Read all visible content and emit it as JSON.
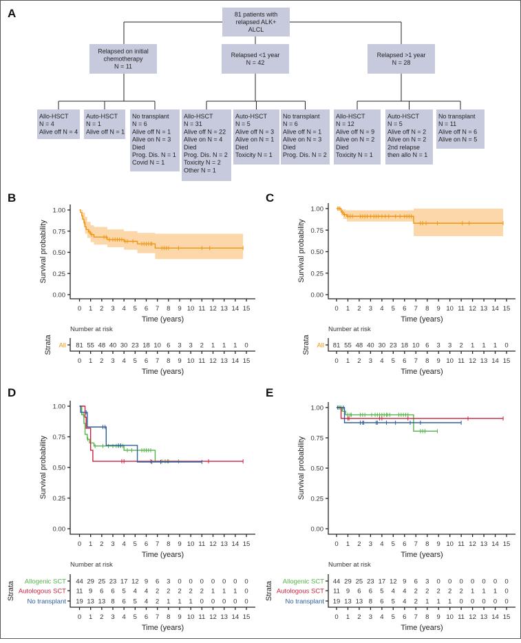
{
  "panels": {
    "A": "A",
    "B": "B",
    "C": "C",
    "D": "D",
    "E": "E"
  },
  "flowchart": {
    "root": [
      "81 patients with",
      "relapsed ALK+",
      "ALCL"
    ],
    "groups": [
      {
        "label": [
          "Relapsed on initial",
          "chemotherapy",
          "N = 11"
        ],
        "children": [
          [
            "Allo-HSCT",
            "N = 4",
            "Alive off N = 4"
          ],
          [
            "Auto-HSCT",
            "N = 1",
            "Alive off N = 1"
          ],
          [
            "No transplant",
            "N = 6",
            "Alive off N = 1",
            "Alive on N = 3",
            "Died",
            "Prog. Dis. N = 1",
            "Covid N = 1"
          ]
        ]
      },
      {
        "label": [
          "Relapsed <1 year",
          "N = 42"
        ],
        "children": [
          [
            "Allo-HSCT",
            "N = 31",
            "Alive off N = 22",
            "Alive on N = 4",
            "Died",
            "Prog. Dis. N = 2",
            "Toxicity N = 2",
            "Other N = 1"
          ],
          [
            "Auto-HSCT",
            "N = 5",
            "Alive off N = 3",
            "Alive on N = 1",
            "Died",
            "Toxicity N = 1"
          ],
          [
            "No transplant",
            "N = 6",
            "Alive off N = 1",
            "Alive on N = 3",
            "Died",
            "Prog. Dis. N = 2"
          ]
        ]
      },
      {
        "label": [
          "Relapsed >1 year",
          "N = 28"
        ],
        "children": [
          [
            "Allo-HSCT",
            "N = 12",
            "Alive off N = 9",
            "Alive on N = 2",
            "Died",
            "Toxicity N = 1"
          ],
          [
            "Auto-HSCT",
            "N = 5",
            "Alive off N = 2",
            "Alive on N = 2",
            "2nd relapse",
            "then allo N = 1"
          ],
          [
            "No transplant",
            "N = 11",
            "Alive off N = 6",
            "Alive on N = 5"
          ]
        ]
      }
    ]
  },
  "colors": {
    "all": "#f0950f",
    "band": "#fbd7aa",
    "allo": "#52b447",
    "auto": "#cf1f3d",
    "none": "#2c5d9c"
  },
  "chart_data": [
    {
      "panel": "B",
      "type": "line",
      "xlabel": "Time (years)",
      "ylabel": "Survival probability",
      "xticks": [
        "0",
        "1",
        "2",
        "3",
        "4",
        "5",
        "6",
        "7",
        "8",
        "9",
        "10",
        "11",
        "12",
        "13",
        "14",
        "15"
      ],
      "yticks": [
        "0.00",
        "0.25",
        "0.50",
        "0.75",
        "1.00"
      ],
      "xlim": [
        0,
        15
      ],
      "ylim": [
        0,
        1
      ],
      "risk_title": "Number at risk",
      "strata_label": "Strata",
      "series": [
        {
          "name": "All",
          "color_key": "all",
          "steps": [
            [
              0,
              1
            ],
            [
              0.1,
              0.97
            ],
            [
              0.2,
              0.93
            ],
            [
              0.3,
              0.89
            ],
            [
              0.4,
              0.85
            ],
            [
              0.5,
              0.8
            ],
            [
              0.6,
              0.77
            ],
            [
              0.8,
              0.74
            ],
            [
              1.0,
              0.71
            ],
            [
              1.3,
              0.68
            ],
            [
              2.5,
              0.65
            ],
            [
              4.0,
              0.63
            ],
            [
              5.2,
              0.6
            ],
            [
              6.8,
              0.55
            ]
          ],
          "end": 14.7,
          "upper": [
            [
              0,
              1
            ],
            [
              0.3,
              0.97
            ],
            [
              0.5,
              0.92
            ],
            [
              0.7,
              0.86
            ],
            [
              1.0,
              0.82
            ],
            [
              1.3,
              0.8
            ],
            [
              2.5,
              0.77
            ],
            [
              4.0,
              0.75
            ],
            [
              5.2,
              0.73
            ],
            [
              6.8,
              0.72
            ]
          ],
          "lower": [
            [
              0,
              1
            ],
            [
              0.2,
              0.88
            ],
            [
              0.4,
              0.8
            ],
            [
              0.5,
              0.72
            ],
            [
              0.7,
              0.67
            ],
            [
              1.0,
              0.62
            ],
            [
              1.3,
              0.59
            ],
            [
              2.5,
              0.56
            ],
            [
              4.0,
              0.53
            ],
            [
              5.2,
              0.49
            ],
            [
              6.8,
              0.42
            ]
          ],
          "censor": [
            0.45,
            0.9,
            1.1,
            2.2,
            2.4,
            2.7,
            3.0,
            3.2,
            3.4,
            3.6,
            3.8,
            4.1,
            4.3,
            4.8,
            5.6,
            5.8,
            6.0,
            6.2,
            6.4,
            6.5,
            7.4,
            7.6,
            7.8,
            8.0,
            8.9,
            11.0,
            11.7,
            14.7
          ],
          "risk": [
            "81",
            "55",
            "48",
            "40",
            "30",
            "23",
            "18",
            "10",
            "6",
            "3",
            "3",
            "2",
            "1",
            "1",
            "1",
            "0"
          ]
        }
      ]
    },
    {
      "panel": "C",
      "type": "line",
      "xlabel": "Time (years)",
      "ylabel": "Survival probability",
      "xticks": [
        "0",
        "1",
        "2",
        "3",
        "4",
        "5",
        "6",
        "7",
        "8",
        "9",
        "10",
        "11",
        "12",
        "13",
        "14",
        "15"
      ],
      "yticks": [
        "0.00",
        "0.25",
        "0.50",
        "0.75",
        "1.00"
      ],
      "xlim": [
        0,
        15
      ],
      "ylim": [
        0,
        1
      ],
      "risk_title": "Number at risk",
      "strata_label": "Strata",
      "series": [
        {
          "name": "All",
          "color_key": "all",
          "steps": [
            [
              0,
              1
            ],
            [
              0.4,
              0.96
            ],
            [
              0.6,
              0.93
            ],
            [
              0.9,
              0.91
            ],
            [
              6.8,
              0.83
            ]
          ],
          "end": 14.7,
          "upper": [
            [
              0,
              1
            ],
            [
              0.5,
              0.99
            ],
            [
              0.8,
              0.98
            ],
            [
              6.8,
              1.0
            ]
          ],
          "lower": [
            [
              0,
              1
            ],
            [
              0.4,
              0.92
            ],
            [
              0.6,
              0.88
            ],
            [
              0.9,
              0.85
            ],
            [
              6.8,
              0.68
            ]
          ],
          "censor": [
            0.1,
            0.2,
            0.3,
            0.5,
            0.7,
            1.0,
            1.2,
            1.4,
            2.1,
            2.3,
            2.5,
            2.7,
            3.0,
            3.3,
            3.5,
            3.7,
            4.0,
            4.3,
            4.6,
            5.2,
            5.6,
            6.0,
            6.2,
            6.4,
            6.6,
            7.4,
            7.6,
            7.9,
            8.9,
            11.1,
            11.7,
            14.7
          ],
          "risk": [
            "81",
            "55",
            "48",
            "40",
            "30",
            "23",
            "18",
            "10",
            "6",
            "3",
            "3",
            "2",
            "1",
            "1",
            "1",
            "0"
          ]
        }
      ]
    },
    {
      "panel": "D",
      "type": "line",
      "xlabel": "Time (years)",
      "ylabel": "Survival probability",
      "xticks": [
        "0",
        "1",
        "2",
        "3",
        "4",
        "5",
        "6",
        "7",
        "8",
        "9",
        "10",
        "11",
        "12",
        "13",
        "14",
        "15"
      ],
      "yticks": [
        "0.00",
        "0.25",
        "0.50",
        "0.75",
        "1.00"
      ],
      "xlim": [
        0,
        15
      ],
      "ylim": [
        0,
        1
      ],
      "risk_title": "Number at risk",
      "strata_label": "Strata",
      "series": [
        {
          "name": "Allogenic SCT",
          "color_key": "allo",
          "steps": [
            [
              0,
              1
            ],
            [
              0.2,
              0.93
            ],
            [
              0.4,
              0.86
            ],
            [
              0.5,
              0.77
            ],
            [
              0.7,
              0.73
            ],
            [
              0.9,
              0.7
            ],
            [
              1.3,
              0.675
            ],
            [
              4.0,
              0.64
            ],
            [
              6.8,
              0.55
            ]
          ],
          "end": 8.9,
          "censor": [
            0.35,
            0.75,
            1.4,
            2.1,
            2.6,
            3.0,
            3.3,
            3.5,
            3.7,
            3.9,
            4.3,
            4.7,
            5.6,
            5.8,
            6.0,
            6.2,
            6.4,
            7.4,
            7.7,
            7.9,
            8.0,
            8.9
          ],
          "risk": [
            "44",
            "29",
            "25",
            "23",
            "17",
            "12",
            "9",
            "6",
            "3",
            "0",
            "0",
            "0",
            "0",
            "0",
            "0",
            "0"
          ]
        },
        {
          "name": "Autologous SCT",
          "color_key": "auto",
          "steps": [
            [
              0,
              1
            ],
            [
              0.5,
              0.91
            ],
            [
              0.6,
              0.82
            ],
            [
              1.0,
              0.64
            ],
            [
              1.2,
              0.55
            ]
          ],
          "end": 14.7,
          "censor": [
            3.8,
            4.0,
            6.4,
            11.6,
            14.7
          ],
          "risk": [
            "11",
            "9",
            "6",
            "6",
            "5",
            "4",
            "4",
            "2",
            "2",
            "2",
            "2",
            "2",
            "1",
            "1",
            "1",
            "0"
          ]
        },
        {
          "name": "No transplant",
          "color_key": "none",
          "steps": [
            [
              0,
              1
            ],
            [
              0.1,
              0.95
            ],
            [
              0.7,
              0.83
            ],
            [
              2.4,
              0.68
            ],
            [
              5.2,
              0.545
            ]
          ],
          "end": 11.0,
          "censor": [
            0.6,
            2.1,
            2.3,
            3.5,
            3.7,
            6.5,
            7.3,
            11.0
          ],
          "risk": [
            "19",
            "13",
            "13",
            "8",
            "6",
            "5",
            "4",
            "2",
            "1",
            "1",
            "1",
            "0",
            "0",
            "0",
            "0",
            "0"
          ]
        }
      ]
    },
    {
      "panel": "E",
      "type": "line",
      "xlabel": "Time (years)",
      "ylabel": "Survival probability",
      "xticks": [
        "0",
        "1",
        "2",
        "3",
        "4",
        "5",
        "6",
        "7",
        "8",
        "9",
        "10",
        "11",
        "12",
        "13",
        "14",
        "15"
      ],
      "yticks": [
        "0.00",
        "0.25",
        "0.50",
        "0.75",
        "1.00"
      ],
      "xlim": [
        0,
        15
      ],
      "ylim": [
        0,
        1
      ],
      "risk_title": "Number at risk",
      "strata_label": "Strata",
      "series": [
        {
          "name": "Allogenic SCT",
          "color_key": "allo",
          "steps": [
            [
              0,
              1
            ],
            [
              0.5,
              0.97
            ],
            [
              0.8,
              0.94
            ],
            [
              6.8,
              0.805
            ]
          ],
          "end": 8.9,
          "censor": [
            0.2,
            0.3,
            0.4,
            1.0,
            1.2,
            1.3,
            2.1,
            2.3,
            2.5,
            3.1,
            3.4,
            3.6,
            3.8,
            4.0,
            4.2,
            4.4,
            4.5,
            4.7,
            5.5,
            5.7,
            5.9,
            6.1,
            6.3,
            7.4,
            7.6,
            7.8,
            8.9
          ],
          "risk": [
            "44",
            "29",
            "25",
            "23",
            "17",
            "12",
            "9",
            "6",
            "3",
            "0",
            "0",
            "0",
            "0",
            "0",
            "0",
            "0"
          ]
        },
        {
          "name": "Autologous SCT",
          "color_key": "auto",
          "steps": [
            [
              0,
              1
            ],
            [
              0.4,
              0.91
            ]
          ],
          "end": 14.7,
          "censor": [
            1.0,
            1.1,
            3.8,
            4.0,
            6.3,
            11.6,
            14.7
          ],
          "risk": [
            "11",
            "9",
            "6",
            "6",
            "5",
            "4",
            "4",
            "2",
            "2",
            "2",
            "2",
            "2",
            "1",
            "1",
            "1",
            "0"
          ]
        },
        {
          "name": "No transplant",
          "color_key": "none",
          "steps": [
            [
              0,
              1
            ],
            [
              0.7,
              0.875
            ]
          ],
          "end": 11.0,
          "censor": [
            0.1,
            0.6,
            2.1,
            2.3,
            2.4,
            3.5,
            3.6,
            4.4,
            5.2,
            6.5,
            7.4,
            11.0
          ],
          "risk": [
            "19",
            "13",
            "13",
            "8",
            "6",
            "5",
            "4",
            "2",
            "1",
            "1",
            "1",
            "0",
            "0",
            "0",
            "0",
            "0"
          ]
        }
      ]
    }
  ]
}
